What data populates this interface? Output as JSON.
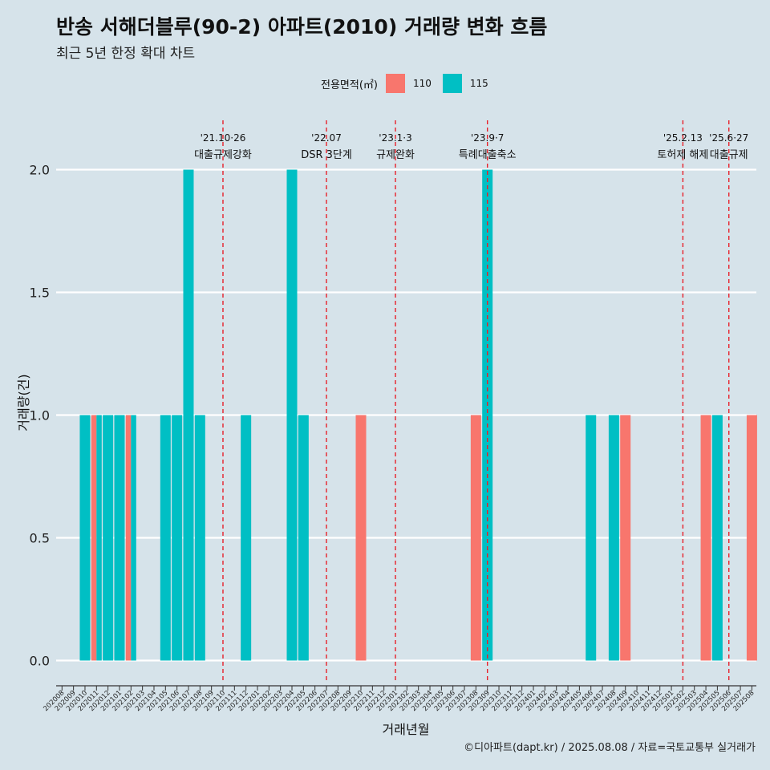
{
  "header": {
    "title": "반송 서해더블루(90-2) 아파트(2010) 거래량 변화 흐름",
    "subtitle": "최근 5년 한정 확대 차트"
  },
  "legend": {
    "title": "전용면적(㎡)",
    "items": [
      {
        "label": "110",
        "color": "#F8766D"
      },
      {
        "label": "115",
        "color": "#00BFC4"
      }
    ]
  },
  "caption": "©디아파트(dapt.kr) / 2025.08.08 / 자료=국토교통부 실거래가",
  "chart_data": {
    "type": "bar",
    "xlabel": "거래년월",
    "ylabel": "거래량(건)",
    "ylim": [
      0,
      2
    ],
    "yticks": [
      "0.0",
      "0.5",
      "1.0",
      "1.5",
      "2.0"
    ],
    "grid": true,
    "legend_position": "top",
    "categories": [
      "202008",
      "202009",
      "202010",
      "202011",
      "202012",
      "202101",
      "202102",
      "202103",
      "202104",
      "202105",
      "202106",
      "202107",
      "202108",
      "202109",
      "202110",
      "202111",
      "202112",
      "202201",
      "202202",
      "202203",
      "202204",
      "202205",
      "202206",
      "202207",
      "202208",
      "202209",
      "202210",
      "202211",
      "202212",
      "202301",
      "202302",
      "202303",
      "202304",
      "202305",
      "202306",
      "202307",
      "202308",
      "202309",
      "202310",
      "202311",
      "202312",
      "202401",
      "202402",
      "202403",
      "202404",
      "202405",
      "202406",
      "202407",
      "202408",
      "202409",
      "202410",
      "202411",
      "202412",
      "202501",
      "202502",
      "202503",
      "202504",
      "202505",
      "202506",
      "202507",
      "202508"
    ],
    "series": [
      {
        "name": "110",
        "color": "#F8766D",
        "values": [
          0,
          0,
          0,
          1,
          0,
          0,
          1,
          0,
          0,
          0,
          0,
          0,
          0,
          0,
          0,
          0,
          0,
          0,
          0,
          0,
          0,
          0,
          0,
          0,
          0,
          0,
          1,
          0,
          0,
          0,
          0,
          0,
          0,
          0,
          0,
          0,
          1,
          0,
          0,
          0,
          0,
          0,
          0,
          0,
          0,
          0,
          0,
          0,
          0,
          1,
          0,
          0,
          0,
          0,
          0,
          0,
          1,
          0,
          0,
          0,
          1
        ]
      },
      {
        "name": "115",
        "color": "#00BFC4",
        "values": [
          0,
          0,
          1,
          1,
          1,
          1,
          1,
          0,
          0,
          1,
          1,
          2,
          1,
          0,
          0,
          0,
          1,
          0,
          0,
          0,
          2,
          1,
          0,
          0,
          0,
          0,
          0,
          0,
          0,
          0,
          0,
          0,
          0,
          0,
          0,
          0,
          0,
          2,
          0,
          0,
          0,
          0,
          0,
          0,
          0,
          0,
          1,
          0,
          1,
          0,
          0,
          0,
          0,
          0,
          0,
          0,
          0,
          1,
          0,
          0,
          0
        ]
      }
    ],
    "annotations": [
      {
        "at": "202110",
        "date": "'21.10·26",
        "label": "대출규제강화"
      },
      {
        "at": "202207",
        "date": "'22.07",
        "label": "DSR 3단계"
      },
      {
        "at": "202301",
        "date": "'23.1·3",
        "label": "규제완화"
      },
      {
        "at": "202309",
        "date": "'23.9·7",
        "label": "특례대출축소"
      },
      {
        "at": "202502",
        "date": "'25.2.13",
        "label": "토허제 해제"
      },
      {
        "at": "202506",
        "date": "'25.6·27",
        "label": "대출규제"
      }
    ]
  }
}
